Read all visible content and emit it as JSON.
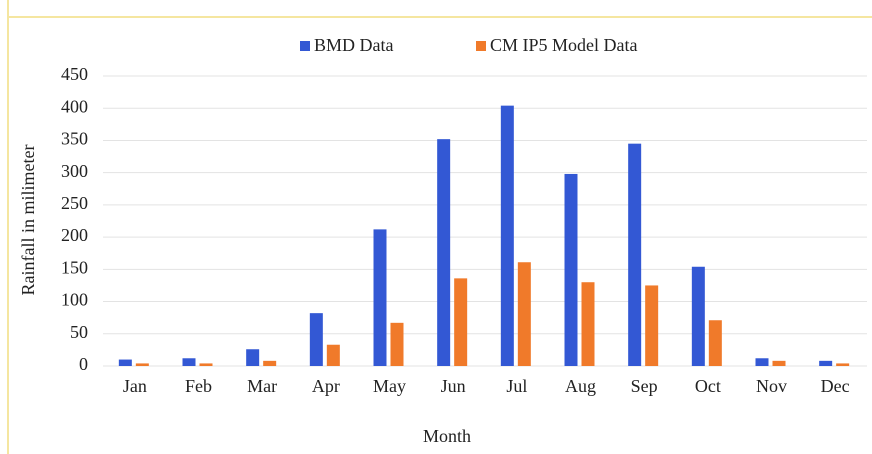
{
  "chart_data": {
    "type": "bar",
    "x_label": "Month",
    "y_label": "Rainfall in milimeter",
    "categories": [
      "Jan",
      "Feb",
      "Mar",
      "Apr",
      "May",
      "Jun",
      "Jul",
      "Aug",
      "Sep",
      "Oct",
      "Nov",
      "Dec"
    ],
    "series": [
      {
        "name": "BMD Data",
        "color": "#3358d4",
        "values": [
          10,
          12,
          26,
          82,
          212,
          352,
          404,
          298,
          345,
          154,
          12,
          8
        ]
      },
      {
        "name": "CM IP5 Model Data",
        "color": "#f07a2a",
        "values": [
          4,
          4,
          8,
          33,
          67,
          136,
          161,
          130,
          125,
          71,
          8,
          4
        ]
      }
    ],
    "ylim": [
      0,
      450
    ],
    "yticks": [
      0,
      50,
      100,
      150,
      200,
      250,
      300,
      350,
      400,
      450
    ],
    "grid": true,
    "legend": "top"
  }
}
